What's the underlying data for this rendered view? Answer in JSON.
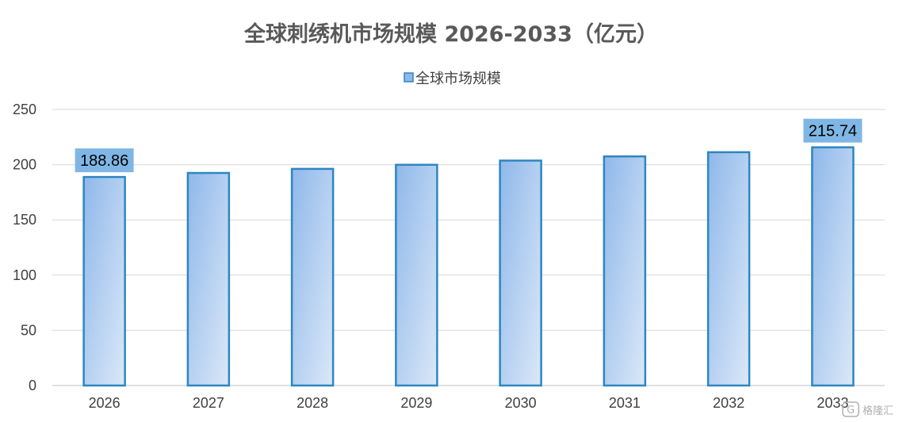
{
  "chart_data": {
    "type": "bar",
    "title": "全球刺绣机市场规模 2026-2033（亿元）",
    "legend": "全球市场规模",
    "legend_position": "top",
    "categories": [
      "2026",
      "2027",
      "2028",
      "2029",
      "2030",
      "2031",
      "2032",
      "2033"
    ],
    "series": [
      {
        "name": "全球市场规模",
        "values": [
          188.86,
          192.5,
          196.2,
          199.9,
          203.7,
          207.5,
          211.3,
          215.74
        ]
      }
    ],
    "data_labels": [
      {
        "category": "2026",
        "text": "188.86"
      },
      {
        "category": "2033",
        "text": "215.74"
      }
    ],
    "y_ticks": [
      "0",
      "50",
      "100",
      "150",
      "200",
      "250"
    ],
    "ylim": [
      0,
      250
    ],
    "grid": true,
    "colors": {
      "bar_top": "#8fb8ea",
      "bar_bottom": "#dbe8f8",
      "bar_border": "#2e86c1",
      "label_bg": "#7fb6e6",
      "grid": "#d9d9d9",
      "title": "#595959"
    }
  },
  "watermark": {
    "icon": "g-logo-icon",
    "text": "格隆汇"
  }
}
